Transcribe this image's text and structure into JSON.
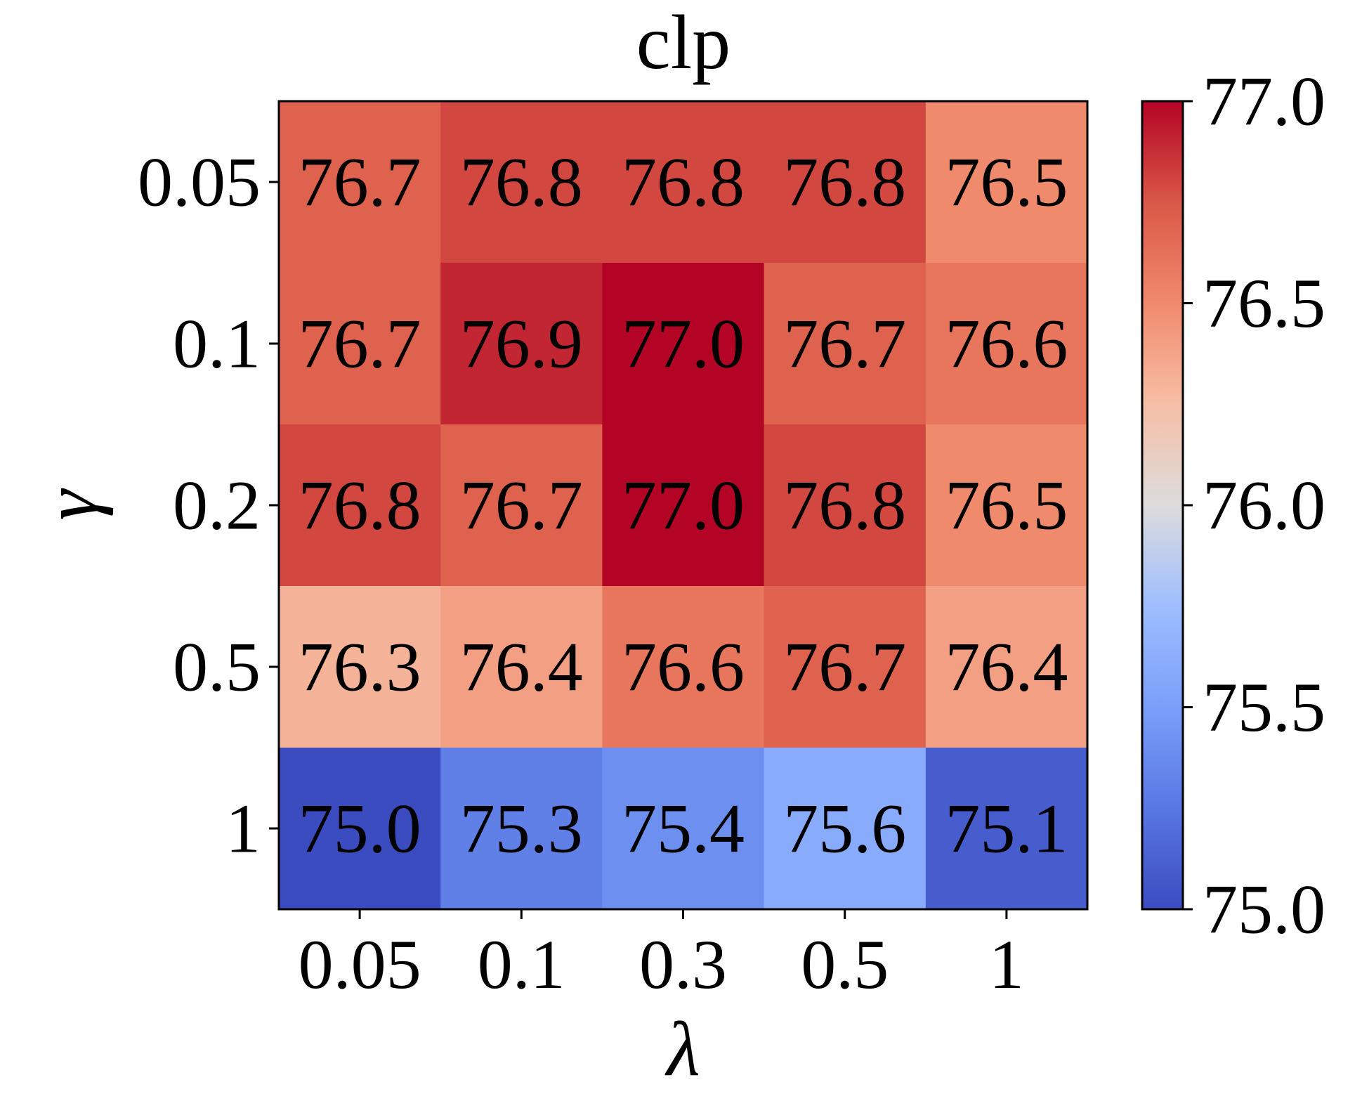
{
  "chart_data": {
    "type": "heatmap",
    "title": "clp",
    "xlabel": "λ",
    "ylabel": "γ",
    "x_categories": [
      "0.05",
      "0.1",
      "0.3",
      "0.5",
      "1"
    ],
    "y_categories": [
      "0.05",
      "0.1",
      "0.2",
      "0.5",
      "1"
    ],
    "values": [
      [
        76.7,
        76.8,
        76.8,
        76.8,
        76.5
      ],
      [
        76.7,
        76.9,
        77.0,
        76.7,
        76.6
      ],
      [
        76.8,
        76.7,
        77.0,
        76.8,
        76.5
      ],
      [
        76.3,
        76.4,
        76.6,
        76.7,
        76.4
      ],
      [
        75.0,
        75.3,
        75.4,
        75.6,
        75.1
      ]
    ],
    "cell_labels": [
      [
        "76.7",
        "76.8",
        "76.8",
        "76.8",
        "76.5"
      ],
      [
        "76.7",
        "76.9",
        "77.0",
        "76.7",
        "76.6"
      ],
      [
        "76.8",
        "76.7",
        "77.0",
        "76.8",
        "76.5"
      ],
      [
        "76.3",
        "76.4",
        "76.6",
        "76.7",
        "76.4"
      ],
      [
        "75.0",
        "75.3",
        "75.4",
        "75.6",
        "75.1"
      ]
    ],
    "colormap": "coolwarm",
    "vmin": 75.0,
    "vmax": 77.0,
    "colorbar": {
      "ticks": [
        75.0,
        75.5,
        76.0,
        76.5,
        77.0
      ],
      "tick_labels": [
        "75.0",
        "75.5",
        "76.0",
        "76.5",
        "77.0"
      ]
    }
  }
}
